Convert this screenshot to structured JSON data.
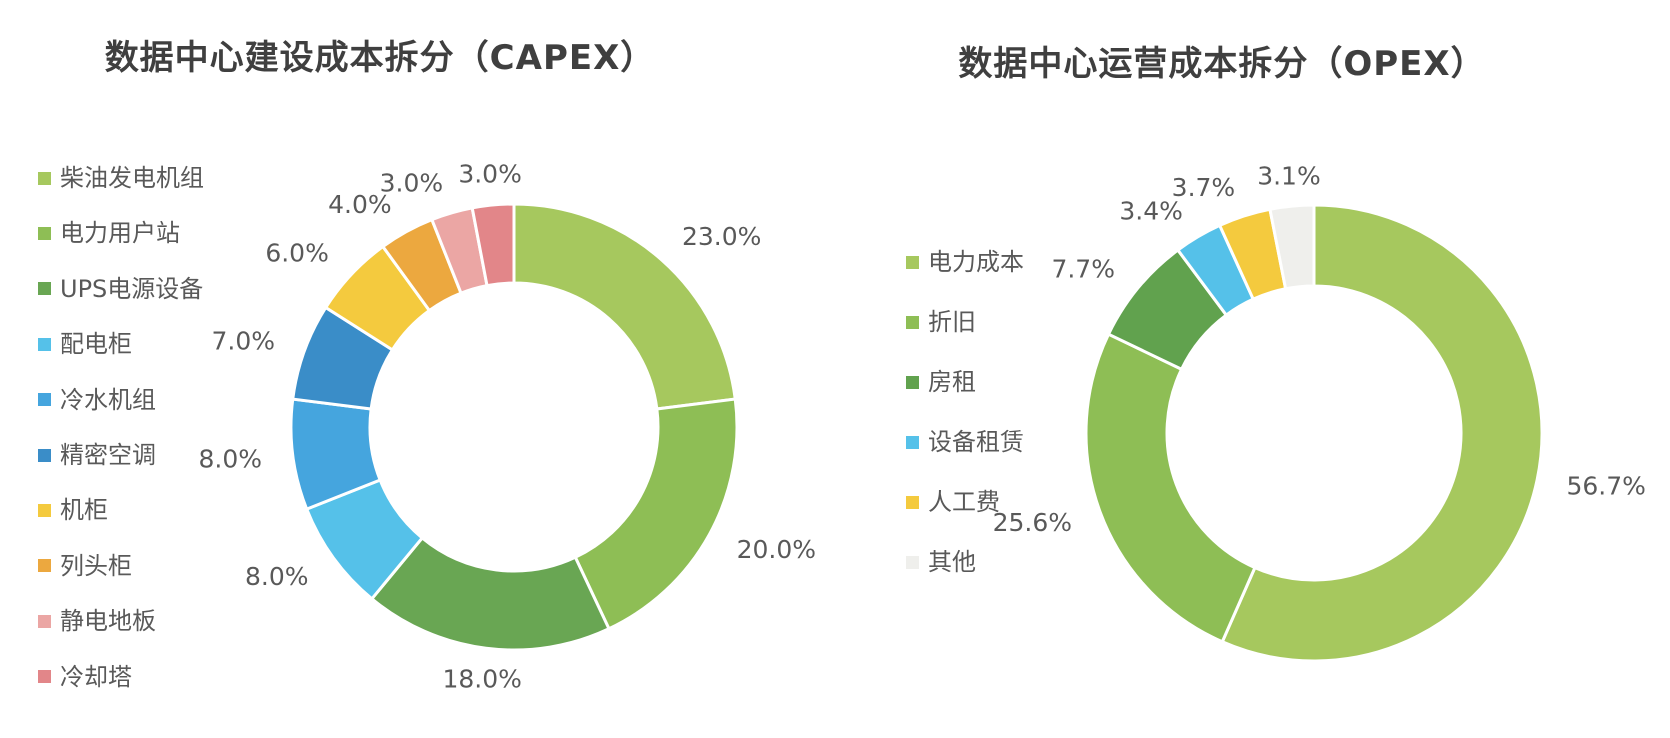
{
  "page": {
    "background_color": "#ffffff",
    "title_color": "#3f3f3f",
    "label_color": "#595959"
  },
  "chart_data": [
    {
      "type": "pie",
      "donut": true,
      "title": "数据中心建设成本拆分（CAPEX）",
      "legend_position": "left",
      "start_angle_deg": 0,
      "direction": "clockwise",
      "label_format": "percent",
      "series": [
        {
          "name": "柴油发电机组",
          "value": 23.0,
          "label": "23.0%",
          "color": "#a6c85e"
        },
        {
          "name": "电力用户站",
          "value": 20.0,
          "label": "20.0%",
          "color": "#8ebe55"
        },
        {
          "name": "UPS电源设备",
          "value": 18.0,
          "label": "18.0%",
          "color": "#69a653"
        },
        {
          "name": "配电柜",
          "value": 8.0,
          "label": "8.0%",
          "color": "#55c1e9"
        },
        {
          "name": "冷水机组",
          "value": 8.0,
          "label": "8.0%",
          "color": "#45a5de"
        },
        {
          "name": "精密空调",
          "value": 7.0,
          "label": "7.0%",
          "color": "#3a8dc8"
        },
        {
          "name": "机柜",
          "value": 6.0,
          "label": "6.0%",
          "color": "#f4ca3e"
        },
        {
          "name": "列头柜",
          "value": 4.0,
          "label": "4.0%",
          "color": "#eca83f"
        },
        {
          "name": "静电地板",
          "value": 3.0,
          "label": "3.0%",
          "color": "#eba6a4"
        },
        {
          "name": "冷却塔",
          "value": 3.0,
          "label": "3.0%",
          "color": "#e28689"
        }
      ]
    },
    {
      "type": "pie",
      "donut": true,
      "title": "数据中心运营成本拆分（OPEX）",
      "legend_position": "left",
      "start_angle_deg": 0,
      "direction": "clockwise",
      "label_format": "percent",
      "series": [
        {
          "name": "电力成本",
          "value": 56.7,
          "label": "56.7%",
          "color": "#a6c85e"
        },
        {
          "name": "折旧",
          "value": 25.6,
          "label": "25.6%",
          "color": "#8ebe55"
        },
        {
          "name": "房租",
          "value": 7.7,
          "label": "7.7%",
          "color": "#61a24e"
        },
        {
          "name": "设备租赁",
          "value": 3.4,
          "label": "3.4%",
          "color": "#55c1e9"
        },
        {
          "name": "人工费",
          "value": 3.7,
          "label": "3.7%",
          "color": "#f4ca3e"
        },
        {
          "name": "其他",
          "value": 3.1,
          "label": "3.1%",
          "color": "#efefec"
        }
      ]
    }
  ]
}
